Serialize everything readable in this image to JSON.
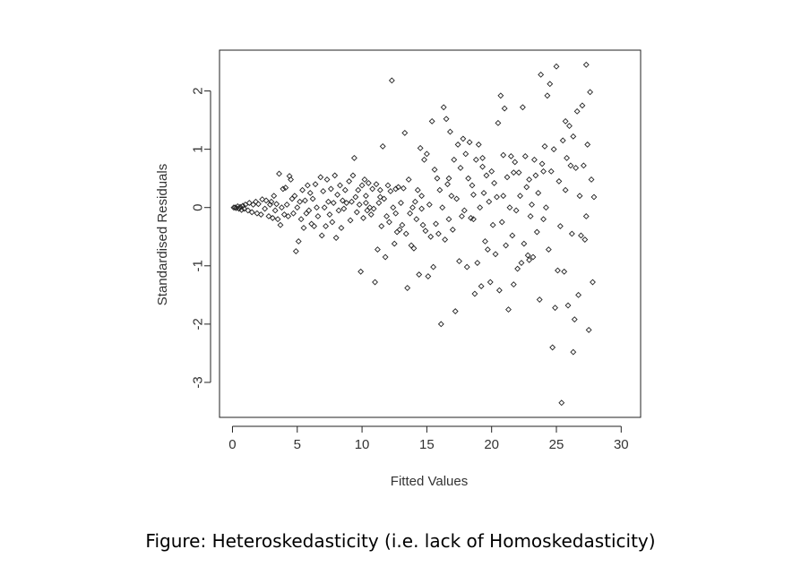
{
  "chart_data": {
    "type": "scatter",
    "title": "",
    "xlabel": "Fitted Values",
    "ylabel": "Standardised Residuals",
    "xlim": [
      -1,
      31.5
    ],
    "ylim": [
      -3.6,
      2.7
    ],
    "xticks": [
      0,
      5,
      10,
      15,
      20,
      25,
      30
    ],
    "yticks": [
      -3,
      -2,
      -1,
      0,
      1,
      2
    ],
    "xtick_labels": [
      "0",
      "5",
      "10",
      "15",
      "20",
      "25",
      "30"
    ],
    "ytick_labels": [
      "-3",
      "-2",
      "-1",
      "0",
      "1",
      "2"
    ],
    "grid": false,
    "marker": "open-diamond",
    "points": [
      [
        0.1,
        0.0
      ],
      [
        0.2,
        0.0
      ],
      [
        0.3,
        -0.01
      ],
      [
        0.4,
        0.02
      ],
      [
        0.5,
        -0.02
      ],
      [
        0.6,
        0.01
      ],
      [
        0.7,
        -0.04
      ],
      [
        0.8,
        0.03
      ],
      [
        0.9,
        -0.02
      ],
      [
        1.0,
        0.05
      ],
      [
        1.2,
        -0.05
      ],
      [
        1.3,
        0.08
      ],
      [
        1.5,
        -0.08
      ],
      [
        1.6,
        0.05
      ],
      [
        1.8,
        0.1
      ],
      [
        1.9,
        -0.1
      ],
      [
        2.0,
        0.06
      ],
      [
        2.2,
        -0.12
      ],
      [
        2.3,
        0.14
      ],
      [
        2.5,
        -0.02
      ],
      [
        2.6,
        0.12
      ],
      [
        2.8,
        -0.15
      ],
      [
        2.9,
        0.05
      ],
      [
        3.0,
        0.1
      ],
      [
        3.1,
        -0.18
      ],
      [
        3.2,
        0.2
      ],
      [
        3.3,
        -0.05
      ],
      [
        3.4,
        0.06
      ],
      [
        3.5,
        -0.2
      ],
      [
        3.6,
        0.58
      ],
      [
        3.7,
        -0.3
      ],
      [
        3.8,
        0.0
      ],
      [
        3.9,
        0.32
      ],
      [
        4.0,
        -0.12
      ],
      [
        4.1,
        0.34
      ],
      [
        4.2,
        0.05
      ],
      [
        4.3,
        -0.15
      ],
      [
        4.4,
        0.54
      ],
      [
        4.5,
        0.48
      ],
      [
        4.6,
        0.15
      ],
      [
        4.7,
        -0.1
      ],
      [
        4.8,
        0.2
      ],
      [
        4.9,
        -0.75
      ],
      [
        5.0,
        0.0
      ],
      [
        5.1,
        -0.58
      ],
      [
        5.2,
        0.1
      ],
      [
        5.3,
        -0.2
      ],
      [
        5.4,
        0.3
      ],
      [
        5.5,
        -0.35
      ],
      [
        5.6,
        0.12
      ],
      [
        5.7,
        -0.1
      ],
      [
        5.8,
        0.38
      ],
      [
        5.9,
        -0.05
      ],
      [
        6.0,
        0.25
      ],
      [
        6.1,
        -0.28
      ],
      [
        6.2,
        0.15
      ],
      [
        6.3,
        -0.32
      ],
      [
        6.4,
        0.4
      ],
      [
        6.5,
        0.0
      ],
      [
        6.6,
        -0.15
      ],
      [
        6.8,
        0.52
      ],
      [
        6.9,
        -0.48
      ],
      [
        7.0,
        0.28
      ],
      [
        7.1,
        0.0
      ],
      [
        7.2,
        -0.32
      ],
      [
        7.3,
        0.48
      ],
      [
        7.4,
        0.1
      ],
      [
        7.5,
        -0.12
      ],
      [
        7.6,
        0.32
      ],
      [
        7.7,
        -0.25
      ],
      [
        7.8,
        0.08
      ],
      [
        7.9,
        0.55
      ],
      [
        8.0,
        -0.52
      ],
      [
        8.1,
        0.22
      ],
      [
        8.2,
        -0.05
      ],
      [
        8.3,
        0.38
      ],
      [
        8.4,
        -0.35
      ],
      [
        8.5,
        0.12
      ],
      [
        8.6,
        -0.02
      ],
      [
        8.7,
        0.3
      ],
      [
        8.8,
        0.08
      ],
      [
        9.0,
        0.45
      ],
      [
        9.1,
        -0.22
      ],
      [
        9.2,
        0.1
      ],
      [
        9.3,
        0.55
      ],
      [
        9.4,
        0.85
      ],
      [
        9.5,
        0.18
      ],
      [
        9.6,
        -0.08
      ],
      [
        9.7,
        0.3
      ],
      [
        9.8,
        0.05
      ],
      [
        9.9,
        -1.1
      ],
      [
        10.0,
        0.38
      ],
      [
        10.1,
        -0.18
      ],
      [
        10.2,
        0.48
      ],
      [
        10.3,
        0.2
      ],
      [
        10.4,
        -0.05
      ],
      [
        10.5,
        0.42
      ],
      [
        10.6,
        0.0
      ],
      [
        10.7,
        -0.12
      ],
      [
        10.8,
        0.32
      ],
      [
        10.9,
        -0.02
      ],
      [
        11.0,
        -1.28
      ],
      [
        11.1,
        0.4
      ],
      [
        11.2,
        -0.72
      ],
      [
        11.3,
        0.08
      ],
      [
        11.4,
        0.3
      ],
      [
        11.5,
        -0.32
      ],
      [
        11.6,
        1.05
      ],
      [
        11.7,
        0.15
      ],
      [
        11.8,
        -0.85
      ],
      [
        11.9,
        -0.15
      ],
      [
        12.0,
        0.38
      ],
      [
        12.1,
        -0.25
      ],
      [
        12.2,
        0.28
      ],
      [
        12.3,
        2.18
      ],
      [
        12.4,
        0.0
      ],
      [
        12.5,
        -0.62
      ],
      [
        12.6,
        0.32
      ],
      [
        12.7,
        -0.42
      ],
      [
        12.8,
        0.35
      ],
      [
        12.9,
        -0.38
      ],
      [
        13.0,
        0.08
      ],
      [
        13.1,
        -0.3
      ],
      [
        13.2,
        0.33
      ],
      [
        13.3,
        1.28
      ],
      [
        13.4,
        -0.45
      ],
      [
        13.5,
        -1.38
      ],
      [
        13.6,
        0.48
      ],
      [
        13.7,
        -0.1
      ],
      [
        13.8,
        -0.65
      ],
      [
        13.9,
        0.0
      ],
      [
        14.0,
        -0.7
      ],
      [
        14.1,
        0.1
      ],
      [
        14.2,
        -0.2
      ],
      [
        14.3,
        0.3
      ],
      [
        14.4,
        -1.15
      ],
      [
        14.5,
        1.02
      ],
      [
        14.6,
        0.2
      ],
      [
        14.7,
        -0.3
      ],
      [
        14.8,
        0.82
      ],
      [
        14.9,
        -0.4
      ],
      [
        15.0,
        0.92
      ],
      [
        15.1,
        -1.18
      ],
      [
        15.2,
        0.05
      ],
      [
        15.3,
        -0.5
      ],
      [
        15.4,
        1.48
      ],
      [
        15.5,
        -1.02
      ],
      [
        15.6,
        0.65
      ],
      [
        15.7,
        -0.28
      ],
      [
        15.8,
        0.5
      ],
      [
        15.9,
        -0.45
      ],
      [
        16.0,
        0.3
      ],
      [
        16.1,
        -2.0
      ],
      [
        16.2,
        0.0
      ],
      [
        16.3,
        1.72
      ],
      [
        16.4,
        -0.55
      ],
      [
        16.5,
        1.52
      ],
      [
        16.6,
        0.4
      ],
      [
        16.7,
        -0.2
      ],
      [
        16.8,
        1.3
      ],
      [
        16.9,
        0.2
      ],
      [
        17.0,
        -0.38
      ],
      [
        17.1,
        0.82
      ],
      [
        17.2,
        -1.78
      ],
      [
        17.3,
        0.15
      ],
      [
        17.4,
        1.08
      ],
      [
        17.5,
        -0.92
      ],
      [
        17.6,
        0.68
      ],
      [
        17.7,
        -0.15
      ],
      [
        17.8,
        1.18
      ],
      [
        17.9,
        -0.05
      ],
      [
        18.0,
        0.92
      ],
      [
        18.1,
        -1.02
      ],
      [
        18.2,
        0.5
      ],
      [
        18.3,
        1.12
      ],
      [
        18.4,
        -0.18
      ],
      [
        18.5,
        0.38
      ],
      [
        18.6,
        0.22
      ],
      [
        18.7,
        -1.48
      ],
      [
        18.8,
        0.82
      ],
      [
        18.9,
        -0.95
      ],
      [
        19.0,
        1.08
      ],
      [
        19.1,
        0.0
      ],
      [
        19.2,
        -1.35
      ],
      [
        19.3,
        0.7
      ],
      [
        19.4,
        0.25
      ],
      [
        19.5,
        -0.58
      ],
      [
        19.6,
        0.55
      ],
      [
        19.7,
        -0.72
      ],
      [
        19.8,
        0.1
      ],
      [
        19.9,
        -1.28
      ],
      [
        20.0,
        0.62
      ],
      [
        20.1,
        -0.3
      ],
      [
        20.2,
        0.42
      ],
      [
        20.3,
        -0.8
      ],
      [
        20.4,
        0.18
      ],
      [
        20.5,
        1.45
      ],
      [
        20.6,
        -1.42
      ],
      [
        20.7,
        1.92
      ],
      [
        20.8,
        -0.25
      ],
      [
        20.9,
        0.2
      ],
      [
        21.0,
        1.7
      ],
      [
        21.1,
        -0.65
      ],
      [
        21.2,
        0.52
      ],
      [
        21.3,
        -1.75
      ],
      [
        21.4,
        0.0
      ],
      [
        21.5,
        0.88
      ],
      [
        21.6,
        -0.48
      ],
      [
        21.7,
        -1.32
      ],
      [
        21.8,
        0.78
      ],
      [
        21.9,
        -0.05
      ],
      [
        22.0,
        -1.05
      ],
      [
        22.1,
        0.6
      ],
      [
        22.2,
        0.2
      ],
      [
        22.3,
        -0.95
      ],
      [
        22.4,
        1.72
      ],
      [
        22.5,
        -0.62
      ],
      [
        22.6,
        0.88
      ],
      [
        22.7,
        0.35
      ],
      [
        22.8,
        -0.82
      ],
      [
        22.9,
        0.48
      ],
      [
        23.0,
        -0.15
      ],
      [
        23.1,
        0.05
      ],
      [
        23.2,
        -0.85
      ],
      [
        23.3,
        0.82
      ],
      [
        23.4,
        0.55
      ],
      [
        23.5,
        -0.42
      ],
      [
        23.6,
        0.25
      ],
      [
        23.7,
        -1.58
      ],
      [
        23.8,
        2.28
      ],
      [
        23.9,
        0.75
      ],
      [
        24.0,
        -0.2
      ],
      [
        24.1,
        1.05
      ],
      [
        24.2,
        0.0
      ],
      [
        24.3,
        1.92
      ],
      [
        24.4,
        -0.72
      ],
      [
        24.5,
        2.12
      ],
      [
        24.6,
        0.62
      ],
      [
        24.7,
        -2.4
      ],
      [
        24.8,
        1.0
      ],
      [
        24.9,
        -1.72
      ],
      [
        25.0,
        2.42
      ],
      [
        25.1,
        -1.08
      ],
      [
        25.2,
        0.45
      ],
      [
        25.3,
        -0.32
      ],
      [
        25.4,
        -3.35
      ],
      [
        25.5,
        1.15
      ],
      [
        25.6,
        -1.1
      ],
      [
        25.7,
        1.48
      ],
      [
        25.8,
        0.85
      ],
      [
        25.9,
        -1.68
      ],
      [
        26.0,
        1.4
      ],
      [
        26.1,
        0.72
      ],
      [
        26.2,
        -0.45
      ],
      [
        26.3,
        1.22
      ],
      [
        26.4,
        -1.92
      ],
      [
        26.5,
        0.68
      ],
      [
        26.6,
        1.65
      ],
      [
        26.7,
        -1.5
      ],
      [
        26.8,
        0.2
      ],
      [
        26.9,
        -0.48
      ],
      [
        27.0,
        1.75
      ],
      [
        27.1,
        0.72
      ],
      [
        27.2,
        -0.55
      ],
      [
        27.3,
        2.45
      ],
      [
        27.4,
        1.08
      ],
      [
        27.5,
        -2.1
      ],
      [
        27.6,
        1.98
      ],
      [
        27.7,
        0.48
      ],
      [
        27.8,
        -1.28
      ],
      [
        27.9,
        0.18
      ],
      [
        10.3,
        0.08
      ],
      [
        11.4,
        0.18
      ],
      [
        12.6,
        -0.1
      ],
      [
        14.6,
        -0.02
      ],
      [
        16.7,
        0.5
      ],
      [
        18.6,
        -0.2
      ],
      [
        20.9,
        0.9
      ],
      [
        22.9,
        -0.9
      ],
      [
        25.7,
        0.3
      ],
      [
        26.3,
        -2.48
      ],
      [
        27.3,
        -0.15
      ],
      [
        24.0,
        0.62
      ],
      [
        21.7,
        0.6
      ],
      [
        19.3,
        0.85
      ]
    ]
  },
  "caption": "Figure: Heteroskedasticity (i.e. lack of Homoskedasticity)"
}
